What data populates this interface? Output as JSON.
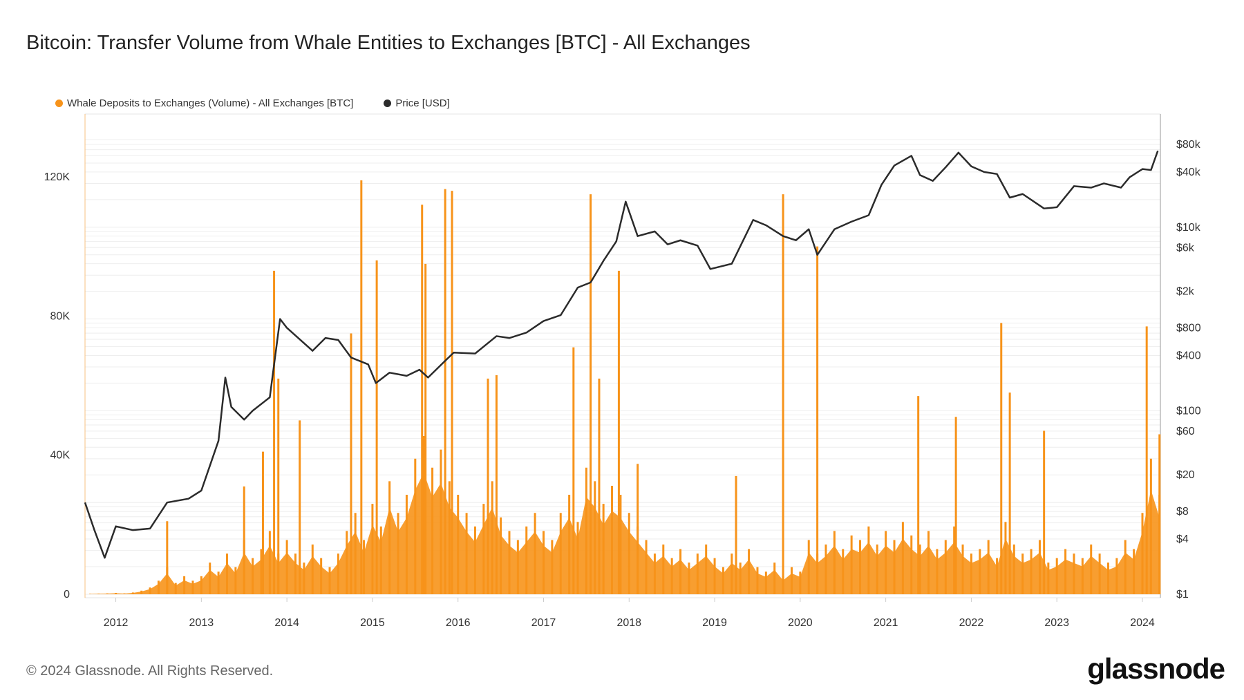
{
  "title": "Bitcoin: Transfer Volume from Whale Entities to Exchanges [BTC] - All Exchanges",
  "footer": "© 2024 Glassnode. All Rights Reserved.",
  "logo": "glassnode",
  "colors": {
    "volume": "#f7931a",
    "price": "#2b2b2b",
    "grid": "#eeeeee"
  },
  "chart_data": {
    "type": "bar+line",
    "legend_placement": "top-left",
    "grid": true,
    "series": [
      {
        "name": "Whale Deposits to Exchanges (Volume) - All Exchanges [BTC]",
        "axis": "left",
        "type": "bar",
        "color": "#f7931a"
      },
      {
        "name": "Price [USD]",
        "axis": "right",
        "type": "line",
        "scale": "log",
        "color": "#2b2b2b"
      }
    ],
    "x_ticks": [
      "2012",
      "2013",
      "2014",
      "2015",
      "2016",
      "2017",
      "2018",
      "2019",
      "2020",
      "2021",
      "2022",
      "2023",
      "2024"
    ],
    "xlim": [
      2011.64,
      2024.21
    ],
    "y_left": {
      "ticks": [
        "0",
        "40K",
        "80K",
        "120K"
      ],
      "tick_values": [
        0,
        40000,
        80000,
        120000
      ],
      "ylim": [
        0,
        139000
      ]
    },
    "y_right": {
      "ticks": [
        "$1",
        "$4",
        "$8",
        "$20",
        "$60",
        "$100",
        "$400",
        "$800",
        "$2k",
        "$6k",
        "$10k",
        "$40k",
        "$80k"
      ],
      "tick_values": [
        1,
        4,
        8,
        20,
        60,
        100,
        400,
        800,
        2000,
        6000,
        10000,
        40000,
        80000
      ],
      "scale": "log"
    },
    "price": [
      [
        2011.64,
        10
      ],
      [
        2011.75,
        5
      ],
      [
        2011.87,
        2.5
      ],
      [
        2012.0,
        5.5
      ],
      [
        2012.2,
        5
      ],
      [
        2012.4,
        5.2
      ],
      [
        2012.6,
        10
      ],
      [
        2012.85,
        11
      ],
      [
        2013.0,
        13.5
      ],
      [
        2013.2,
        47
      ],
      [
        2013.28,
        230
      ],
      [
        2013.35,
        110
      ],
      [
        2013.5,
        80
      ],
      [
        2013.6,
        100
      ],
      [
        2013.8,
        140
      ],
      [
        2013.92,
        1000
      ],
      [
        2014.0,
        800
      ],
      [
        2014.15,
        600
      ],
      [
        2014.3,
        450
      ],
      [
        2014.45,
        620
      ],
      [
        2014.6,
        590
      ],
      [
        2014.75,
        380
      ],
      [
        2014.95,
        320
      ],
      [
        2015.04,
        200
      ],
      [
        2015.2,
        260
      ],
      [
        2015.4,
        240
      ],
      [
        2015.55,
        280
      ],
      [
        2015.65,
        230
      ],
      [
        2015.85,
        350
      ],
      [
        2015.95,
        430
      ],
      [
        2016.2,
        420
      ],
      [
        2016.45,
        650
      ],
      [
        2016.6,
        620
      ],
      [
        2016.8,
        710
      ],
      [
        2017.0,
        950
      ],
      [
        2017.2,
        1100
      ],
      [
        2017.4,
        2200
      ],
      [
        2017.55,
        2500
      ],
      [
        2017.7,
        4300
      ],
      [
        2017.85,
        7000
      ],
      [
        2017.96,
        19000
      ],
      [
        2018.1,
        8000
      ],
      [
        2018.3,
        9000
      ],
      [
        2018.45,
        6500
      ],
      [
        2018.6,
        7200
      ],
      [
        2018.8,
        6300
      ],
      [
        2018.95,
        3500
      ],
      [
        2019.2,
        4000
      ],
      [
        2019.45,
        12000
      ],
      [
        2019.6,
        10500
      ],
      [
        2019.8,
        8000
      ],
      [
        2019.95,
        7200
      ],
      [
        2020.1,
        9500
      ],
      [
        2020.2,
        5000
      ],
      [
        2020.4,
        9500
      ],
      [
        2020.6,
        11500
      ],
      [
        2020.8,
        13500
      ],
      [
        2020.95,
        29000
      ],
      [
        2021.1,
        47000
      ],
      [
        2021.3,
        60000
      ],
      [
        2021.4,
        37000
      ],
      [
        2021.55,
        32000
      ],
      [
        2021.7,
        45000
      ],
      [
        2021.85,
        65000
      ],
      [
        2022.0,
        46000
      ],
      [
        2022.15,
        40000
      ],
      [
        2022.3,
        38000
      ],
      [
        2022.45,
        21000
      ],
      [
        2022.6,
        23000
      ],
      [
        2022.85,
        16000
      ],
      [
        2023.0,
        16500
      ],
      [
        2023.2,
        28000
      ],
      [
        2023.4,
        27000
      ],
      [
        2023.55,
        30000
      ],
      [
        2023.75,
        27000
      ],
      [
        2023.85,
        35000
      ],
      [
        2024.0,
        43000
      ],
      [
        2024.1,
        42000
      ],
      [
        2024.18,
        68000
      ]
    ],
    "volume": [
      [
        2011.7,
        100
      ],
      [
        2011.8,
        150
      ],
      [
        2011.9,
        200
      ],
      [
        2012.0,
        300
      ],
      [
        2012.1,
        200
      ],
      [
        2012.2,
        400
      ],
      [
        2012.3,
        800
      ],
      [
        2012.4,
        1500
      ],
      [
        2012.5,
        3000
      ],
      [
        2012.6,
        6000
      ],
      [
        2012.7,
        2500
      ],
      [
        2012.8,
        4000
      ],
      [
        2012.9,
        3000
      ],
      [
        2013.0,
        4000
      ],
      [
        2013.1,
        7000
      ],
      [
        2013.2,
        5000
      ],
      [
        2013.3,
        9000
      ],
      [
        2013.4,
        6000
      ],
      [
        2013.5,
        12000
      ],
      [
        2013.6,
        8000
      ],
      [
        2013.7,
        10000
      ],
      [
        2013.8,
        14000
      ],
      [
        2013.9,
        9000
      ],
      [
        2014.0,
        12000
      ],
      [
        2014.1,
        9000
      ],
      [
        2014.2,
        7000
      ],
      [
        2014.3,
        11000
      ],
      [
        2014.4,
        8000
      ],
      [
        2014.5,
        6000
      ],
      [
        2014.6,
        9000
      ],
      [
        2014.7,
        14000
      ],
      [
        2014.8,
        18000
      ],
      [
        2014.9,
        12000
      ],
      [
        2015.0,
        20000
      ],
      [
        2015.1,
        15000
      ],
      [
        2015.2,
        25000
      ],
      [
        2015.3,
        18000
      ],
      [
        2015.4,
        22000
      ],
      [
        2015.5,
        30000
      ],
      [
        2015.6,
        35000
      ],
      [
        2015.7,
        28000
      ],
      [
        2015.8,
        32000
      ],
      [
        2015.9,
        25000
      ],
      [
        2016.0,
        22000
      ],
      [
        2016.1,
        18000
      ],
      [
        2016.2,
        15000
      ],
      [
        2016.3,
        20000
      ],
      [
        2016.4,
        25000
      ],
      [
        2016.5,
        17000
      ],
      [
        2016.6,
        14000
      ],
      [
        2016.7,
        12000
      ],
      [
        2016.8,
        15000
      ],
      [
        2016.9,
        18000
      ],
      [
        2017.0,
        14000
      ],
      [
        2017.1,
        12000
      ],
      [
        2017.2,
        18000
      ],
      [
        2017.3,
        22000
      ],
      [
        2017.4,
        16000
      ],
      [
        2017.5,
        28000
      ],
      [
        2017.6,
        25000
      ],
      [
        2017.7,
        20000
      ],
      [
        2017.8,
        24000
      ],
      [
        2017.9,
        22000
      ],
      [
        2018.0,
        18000
      ],
      [
        2018.1,
        15000
      ],
      [
        2018.2,
        12000
      ],
      [
        2018.3,
        9000
      ],
      [
        2018.4,
        11000
      ],
      [
        2018.5,
        8000
      ],
      [
        2018.6,
        10000
      ],
      [
        2018.7,
        7000
      ],
      [
        2018.8,
        9000
      ],
      [
        2018.9,
        11000
      ],
      [
        2019.0,
        8000
      ],
      [
        2019.1,
        6000
      ],
      [
        2019.2,
        9000
      ],
      [
        2019.3,
        7000
      ],
      [
        2019.4,
        10000
      ],
      [
        2019.5,
        6000
      ],
      [
        2019.6,
        5000
      ],
      [
        2019.7,
        7000
      ],
      [
        2019.8,
        4000
      ],
      [
        2019.9,
        6000
      ],
      [
        2020.0,
        5000
      ],
      [
        2020.1,
        12000
      ],
      [
        2020.2,
        9000
      ],
      [
        2020.3,
        11000
      ],
      [
        2020.4,
        14000
      ],
      [
        2020.5,
        10000
      ],
      [
        2020.6,
        13000
      ],
      [
        2020.7,
        12000
      ],
      [
        2020.8,
        15000
      ],
      [
        2020.9,
        11000
      ],
      [
        2021.0,
        14000
      ],
      [
        2021.1,
        12000
      ],
      [
        2021.2,
        16000
      ],
      [
        2021.3,
        13000
      ],
      [
        2021.4,
        11000
      ],
      [
        2021.5,
        14000
      ],
      [
        2021.6,
        10000
      ],
      [
        2021.7,
        12000
      ],
      [
        2021.8,
        15000
      ],
      [
        2021.9,
        11000
      ],
      [
        2022.0,
        9000
      ],
      [
        2022.1,
        10000
      ],
      [
        2022.2,
        12000
      ],
      [
        2022.3,
        8000
      ],
      [
        2022.4,
        16000
      ],
      [
        2022.5,
        11000
      ],
      [
        2022.6,
        9000
      ],
      [
        2022.7,
        10000
      ],
      [
        2022.8,
        12000
      ],
      [
        2022.9,
        7000
      ],
      [
        2023.0,
        8000
      ],
      [
        2023.1,
        10000
      ],
      [
        2023.2,
        9000
      ],
      [
        2023.3,
        8000
      ],
      [
        2023.4,
        11000
      ],
      [
        2023.5,
        9000
      ],
      [
        2023.6,
        7000
      ],
      [
        2023.7,
        8000
      ],
      [
        2023.8,
        12000
      ],
      [
        2023.9,
        10000
      ],
      [
        2024.0,
        18000
      ],
      [
        2024.1,
        30000
      ],
      [
        2024.2,
        22000
      ]
    ],
    "volume_spikes": [
      [
        2012.6,
        21000
      ],
      [
        2013.5,
        31000
      ],
      [
        2013.72,
        41000
      ],
      [
        2013.85,
        93000
      ],
      [
        2013.9,
        62000
      ],
      [
        2014.15,
        50000
      ],
      [
        2014.75,
        75000
      ],
      [
        2014.87,
        119000
      ],
      [
        2015.05,
        96000
      ],
      [
        2015.58,
        112000
      ],
      [
        2015.62,
        95000
      ],
      [
        2015.85,
        116500
      ],
      [
        2015.93,
        116000
      ],
      [
        2016.35,
        62000
      ],
      [
        2016.45,
        63000
      ],
      [
        2017.35,
        71000
      ],
      [
        2017.55,
        115000
      ],
      [
        2017.65,
        62000
      ],
      [
        2017.88,
        93000
      ],
      [
        2018.1,
        37500
      ],
      [
        2019.25,
        34000
      ],
      [
        2019.8,
        115000
      ],
      [
        2020.2,
        100000
      ],
      [
        2021.38,
        57000
      ],
      [
        2021.82,
        51000
      ],
      [
        2022.35,
        78000
      ],
      [
        2022.45,
        58000
      ],
      [
        2022.85,
        47000
      ],
      [
        2024.05,
        77000
      ],
      [
        2024.2,
        46000
      ]
    ]
  }
}
